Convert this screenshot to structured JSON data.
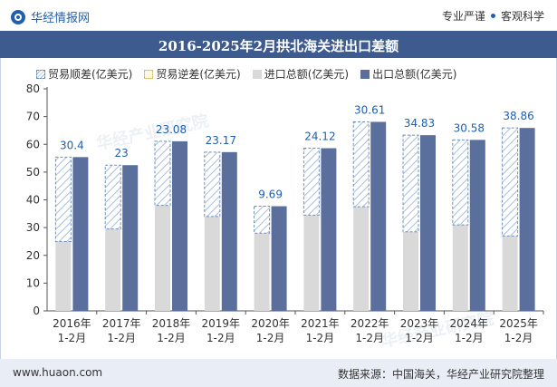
{
  "header": {
    "brand_name": "华经情报网",
    "tag_left": "专业严谨",
    "tag_right": "客观科学"
  },
  "footer": {
    "url": "www.huaon.com",
    "source": "数据来源：中国海关，华经产业研究院整理"
  },
  "watermark": "华经产业研究院",
  "colors": {
    "title_bar": "#3e5b8f",
    "export": "#5b6f9d",
    "import": "#d9d9d9",
    "surplus_hatch": "#a9bedc",
    "label": "#1f5fb0"
  },
  "chart_data": {
    "type": "bar",
    "title": "2016-2025年2月拱北海关进出口差额",
    "categories": [
      "2016年\n1-2月",
      "2017年\n1-2月",
      "2018年\n1-2月",
      "2019年\n1-2月",
      "2020年\n1-2月",
      "2021年\n1-2月",
      "2022年\n1-2月",
      "2023年\n1-2月",
      "2024年\n1-2月",
      "2025年\n1-2月"
    ],
    "series": [
      {
        "name": "贸易顺差(亿美元)",
        "values": [
          30.4,
          23,
          23.08,
          23.17,
          9.69,
          24.12,
          30.61,
          34.83,
          30.58,
          38.86
        ]
      },
      {
        "name": "贸易逆差(亿美元)",
        "values": [
          0,
          0,
          0,
          0,
          0,
          0,
          0,
          0,
          0,
          0
        ]
      },
      {
        "name": "进口总额(亿美元)",
        "values": [
          25,
          29.5,
          38,
          34,
          28,
          34.5,
          37.5,
          28.5,
          31,
          27
        ]
      },
      {
        "name": "出口总额(亿美元)",
        "values": [
          55.4,
          52.5,
          61.1,
          57.2,
          37.7,
          58.6,
          68.1,
          63.3,
          61.6,
          65.9
        ]
      }
    ],
    "data_labels": [
      "30.4",
      "23",
      "23.08",
      "23.17",
      "9.69",
      "24.12",
      "30.61",
      "34.83",
      "30.58",
      "38.86"
    ],
    "ylim": [
      0,
      80
    ],
    "yticks": [
      0,
      10,
      20,
      30,
      40,
      50,
      60,
      70,
      80
    ],
    "grid": false,
    "legend": "top"
  }
}
